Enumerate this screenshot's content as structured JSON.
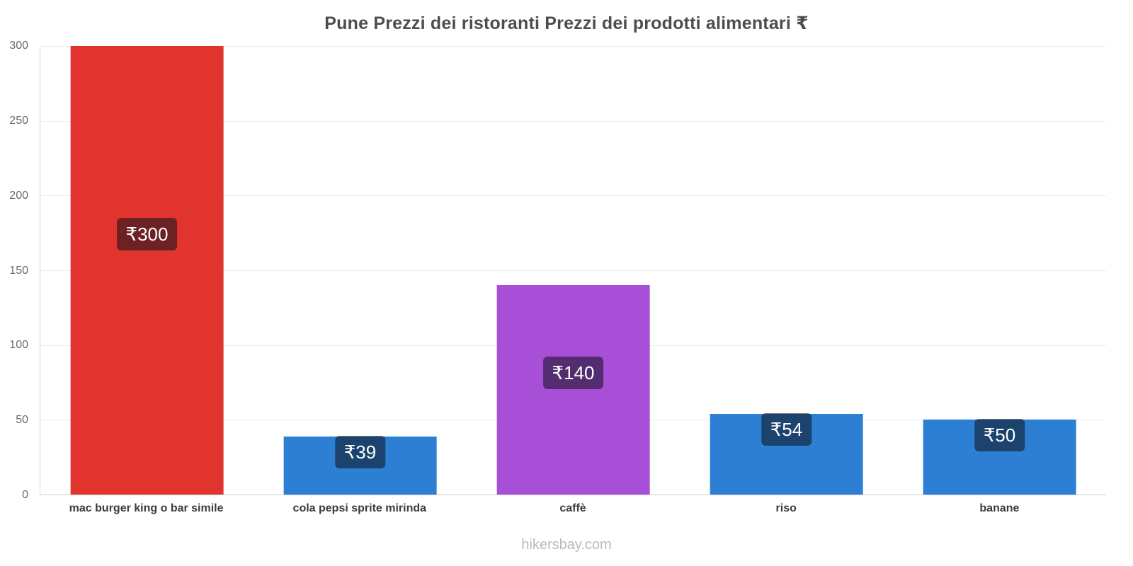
{
  "page": {
    "title": "Pune Prezzi dei ristoranti Prezzi dei prodotti alimentari ₹",
    "footer": "hikersbay.com"
  },
  "chart_data": {
    "type": "bar",
    "title": "Pune Prezzi dei ristoranti Prezzi dei prodotti alimentari ₹",
    "currency": "₹",
    "categories": [
      "mac burger king o bar simile",
      "cola pepsi sprite mirinda",
      "caffè",
      "riso",
      "banane"
    ],
    "values": [
      300,
      39,
      140,
      54,
      50
    ],
    "value_labels": [
      "₹300",
      "₹39",
      "₹140",
      "₹54",
      "₹50"
    ],
    "bar_colors": [
      "#e1342e",
      "#2d7fd3",
      "#a84fd8",
      "#2d7fd3",
      "#2d7fd3"
    ],
    "ylim": [
      0,
      300
    ],
    "yticks": [
      0,
      50,
      100,
      150,
      200,
      250,
      300
    ],
    "grid": true,
    "legend": false,
    "label_box_color": "rgba(15,18,28,0.55)",
    "footer": "hikersbay.com"
  }
}
